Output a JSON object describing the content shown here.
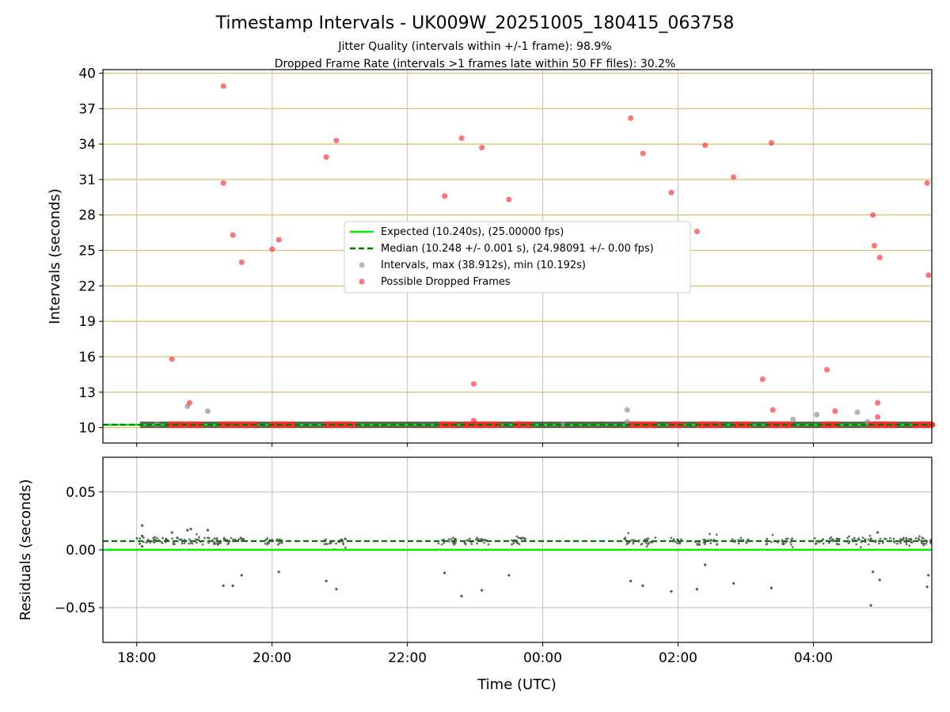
{
  "figure": {
    "title": "Timestamp Intervals - UK009W_20251005_180415_063758",
    "subtitle_1": "Jitter Quality (intervals within +/-1 frame): 98.9%",
    "subtitle_2": "Dropped Frame Rate (intervals >1 frames late within 50 FF files): 30.2%",
    "colors": {
      "expected": "#00ee00",
      "median": "#007700",
      "interval": "#999999",
      "dropped": "#ff2a2a",
      "grid_h_top": "#d8bf6a",
      "grid": "#c8c8c8",
      "band": "#2a2a2a",
      "residual": "#555555"
    }
  },
  "chart_data": [
    {
      "type": "scatter",
      "title": "",
      "xlabel": "",
      "ylabel": "Intervals (seconds)",
      "xlim_hours": [
        -0.5,
        11.75
      ],
      "ylim": [
        8.7,
        40.3
      ],
      "yticks": [
        10,
        13,
        16,
        19,
        22,
        25,
        28,
        31,
        34,
        37,
        40
      ],
      "xticks": [
        {
          "h": 0,
          "label": "18:00"
        },
        {
          "h": 2,
          "label": "20:00"
        },
        {
          "h": 4,
          "label": "22:00"
        },
        {
          "h": 6,
          "label": "00:00"
        },
        {
          "h": 8,
          "label": "02:00"
        },
        {
          "h": 10,
          "label": "04:00"
        }
      ],
      "expected_value": 10.24,
      "median_value": 10.248,
      "legend": {
        "placement": "center",
        "entries": [
          "Expected (10.240s), (25.00000 fps)",
          "Median (10.248 +/- 0.001 s), (24.98091 +/- 0.00 fps)",
          "Intervals, max (38.912s), min (10.192s)",
          "Possible Dropped Frames"
        ]
      },
      "interval_band": {
        "start_h": 0.05,
        "end_h": 11.75,
        "value": 10.25
      },
      "dropped_runs_at_baseline": [
        [
          0.5,
          0.7
        ],
        [
          0.75,
          0.95
        ],
        [
          1.25,
          1.75
        ],
        [
          2.0,
          2.3
        ],
        [
          2.8,
          3.2
        ],
        [
          4.5,
          4.7
        ],
        [
          4.85,
          5.35
        ],
        [
          5.6,
          5.8
        ],
        [
          7.3,
          7.65
        ],
        [
          7.9,
          8.05
        ],
        [
          8.3,
          8.6
        ],
        [
          8.85,
          9.05
        ],
        [
          9.35,
          9.65
        ],
        [
          10.15,
          10.35
        ],
        [
          10.85,
          11.2
        ],
        [
          11.5,
          11.75
        ]
      ],
      "intervals_grey": [
        [
          0.75,
          11.8
        ],
        [
          1.05,
          11.4
        ],
        [
          7.25,
          11.5
        ],
        [
          7.25,
          10.5
        ],
        [
          9.7,
          10.7
        ],
        [
          10.05,
          11.1
        ],
        [
          10.65,
          11.3
        ],
        [
          10.8,
          10.5
        ],
        [
          0.3,
          10.3
        ],
        [
          6.3,
          10.3
        ]
      ],
      "dropped_points": [
        [
          0.52,
          15.8
        ],
        [
          0.78,
          12.1
        ],
        [
          1.28,
          38.9
        ],
        [
          1.28,
          30.7
        ],
        [
          1.42,
          26.3
        ],
        [
          1.55,
          24.0
        ],
        [
          2.0,
          25.1
        ],
        [
          2.1,
          25.9
        ],
        [
          2.8,
          32.9
        ],
        [
          2.95,
          34.3
        ],
        [
          4.55,
          29.6
        ],
        [
          4.8,
          34.5
        ],
        [
          4.98,
          13.7
        ],
        [
          4.98,
          10.6
        ],
        [
          5.1,
          33.7
        ],
        [
          5.5,
          29.3
        ],
        [
          7.3,
          36.2
        ],
        [
          7.48,
          33.2
        ],
        [
          7.9,
          29.9
        ],
        [
          8.28,
          26.6
        ],
        [
          8.4,
          33.9
        ],
        [
          8.82,
          31.2
        ],
        [
          9.25,
          14.1
        ],
        [
          9.38,
          34.1
        ],
        [
          9.4,
          11.5
        ],
        [
          10.2,
          14.9
        ],
        [
          10.32,
          11.4
        ],
        [
          10.88,
          28.0
        ],
        [
          10.9,
          25.4
        ],
        [
          10.95,
          12.1
        ],
        [
          10.95,
          10.9
        ],
        [
          10.98,
          24.4
        ],
        [
          11.68,
          30.7
        ],
        [
          11.7,
          22.9
        ]
      ]
    },
    {
      "type": "scatter",
      "title": "",
      "xlabel": "Time (UTC)",
      "ylabel": "Residuals (seconds)",
      "xlim_hours": [
        -0.5,
        11.75
      ],
      "ylim": [
        -0.08,
        0.08
      ],
      "yticks": [
        {
          "v": 0.05,
          "label": "0.05"
        },
        {
          "v": 0.0,
          "label": "0.00"
        },
        {
          "v": -0.05,
          "label": "−0.05"
        }
      ],
      "xticks": [
        {
          "h": 0,
          "label": "18:00"
        },
        {
          "h": 2,
          "label": "20:00"
        },
        {
          "h": 4,
          "label": "22:00"
        },
        {
          "h": 6,
          "label": "00:00"
        },
        {
          "h": 8,
          "label": "02:00"
        },
        {
          "h": 10,
          "label": "04:00"
        }
      ],
      "expected_value": 0.0,
      "median_value": 0.0075,
      "residual_outliers": [
        [
          0.08,
          0.021
        ],
        [
          0.08,
          0.012
        ],
        [
          0.08,
          0.003
        ],
        [
          0.52,
          0.015
        ],
        [
          0.75,
          0.017
        ],
        [
          0.8,
          0.018
        ],
        [
          1.05,
          0.017
        ],
        [
          1.28,
          -0.031
        ],
        [
          1.42,
          -0.031
        ],
        [
          1.55,
          -0.022
        ],
        [
          2.1,
          -0.019
        ],
        [
          2.8,
          -0.027
        ],
        [
          2.95,
          -0.034
        ],
        [
          4.55,
          -0.02
        ],
        [
          4.8,
          -0.04
        ],
        [
          5.1,
          -0.035
        ],
        [
          5.5,
          -0.022
        ],
        [
          7.3,
          -0.027
        ],
        [
          7.48,
          -0.031
        ],
        [
          7.9,
          -0.036
        ],
        [
          8.28,
          -0.034
        ],
        [
          8.4,
          -0.013
        ],
        [
          8.82,
          -0.029
        ],
        [
          9.38,
          -0.033
        ],
        [
          10.88,
          -0.019
        ],
        [
          10.85,
          -0.048
        ],
        [
          10.98,
          -0.026
        ],
        [
          11.68,
          -0.032
        ],
        [
          11.7,
          -0.022
        ],
        [
          10.95,
          0.015
        ]
      ],
      "residual_clusters": [
        [
          0.0,
          1.3
        ],
        [
          1.2,
          1.6
        ],
        [
          1.9,
          2.2
        ],
        [
          2.75,
          3.1
        ],
        [
          4.45,
          4.75
        ],
        [
          4.8,
          5.2
        ],
        [
          5.45,
          5.75
        ],
        [
          7.2,
          7.7
        ],
        [
          7.85,
          8.05
        ],
        [
          8.25,
          8.6
        ],
        [
          8.8,
          9.05
        ],
        [
          9.3,
          9.7
        ],
        [
          10.0,
          10.4
        ],
        [
          10.5,
          11.0
        ],
        [
          11.0,
          11.75
        ]
      ]
    }
  ]
}
